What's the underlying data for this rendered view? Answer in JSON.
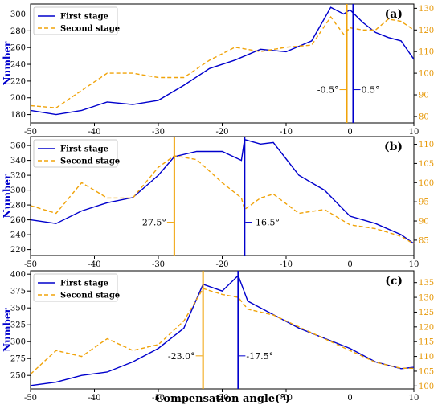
{
  "chart_data": [
    {
      "type": "line",
      "panel_label": "(a)",
      "ylabel": "Number",
      "xlim": [
        -50,
        10
      ],
      "xticks": [
        -50,
        -40,
        -30,
        -20,
        -10,
        0,
        10
      ],
      "ylim": [
        170,
        312
      ],
      "yticks": [
        180,
        200,
        220,
        240,
        260,
        280,
        300
      ],
      "y2lim": [
        77,
        132
      ],
      "y2ticks": [
        80,
        90,
        100,
        110,
        120,
        130
      ],
      "legend": "top-left",
      "series": [
        {
          "name": "First stage",
          "axis": "left",
          "color": "#0000cc",
          "style": "solid",
          "x": [
            -50,
            -46,
            -42,
            -38,
            -34,
            -30,
            -26,
            -22,
            -18,
            -14,
            -10,
            -6,
            -3,
            -1,
            0,
            2,
            4,
            6,
            8,
            10
          ],
          "values": [
            185,
            180,
            185,
            195,
            192,
            197,
            215,
            235,
            245,
            258,
            255,
            268,
            308,
            300,
            305,
            290,
            278,
            272,
            268,
            246
          ]
        },
        {
          "name": "Second stage",
          "axis": "right",
          "color": "#f0a30a",
          "style": "dashed",
          "x": [
            -50,
            -46,
            -42,
            -38,
            -34,
            -30,
            -26,
            -22,
            -18,
            -14,
            -10,
            -6,
            -3,
            -1,
            0,
            2,
            4,
            6,
            8,
            10
          ],
          "values": [
            85,
            84,
            92,
            100,
            100,
            98,
            98,
            106,
            112,
            110,
            112,
            113,
            126,
            118,
            121,
            120,
            120,
            125,
            124,
            120
          ]
        }
      ],
      "markers": [
        {
          "x": -0.5,
          "label": "-0.5°",
          "color": "#f0a30a"
        },
        {
          "x": 0.5,
          "label": "0.5°",
          "color": "#0000cc"
        }
      ]
    },
    {
      "type": "line",
      "panel_label": "(b)",
      "ylabel": "Number",
      "xlim": [
        -50,
        10
      ],
      "xticks": [
        -50,
        -40,
        -30,
        -20,
        -10,
        0,
        10
      ],
      "ylim": [
        212,
        372
      ],
      "yticks": [
        220,
        240,
        260,
        280,
        300,
        320,
        340,
        360
      ],
      "y2lim": [
        81,
        112
      ],
      "y2ticks": [
        85,
        90,
        95,
        100,
        105,
        110
      ],
      "legend": "top-left",
      "series": [
        {
          "name": "First stage",
          "axis": "left",
          "color": "#0000cc",
          "style": "solid",
          "x": [
            -50,
            -46,
            -42,
            -38,
            -34,
            -30,
            -27.5,
            -24,
            -20,
            -17,
            -16.5,
            -14,
            -12,
            -8,
            -4,
            0,
            4,
            8,
            10
          ],
          "values": [
            260,
            255,
            272,
            283,
            290,
            320,
            345,
            352,
            352,
            340,
            368,
            362,
            364,
            320,
            300,
            265,
            255,
            240,
            228
          ]
        },
        {
          "name": "Second stage",
          "axis": "right",
          "color": "#f0a30a",
          "style": "dashed",
          "x": [
            -50,
            -46,
            -42,
            -38,
            -34,
            -30,
            -27.5,
            -24,
            -20,
            -17,
            -16.5,
            -14,
            -12,
            -8,
            -4,
            0,
            4,
            8,
            10
          ],
          "values": [
            94,
            92,
            100,
            96,
            96,
            104,
            107,
            106,
            100,
            96,
            93,
            96,
            97,
            92,
            93,
            89,
            88,
            86,
            84
          ]
        }
      ],
      "markers": [
        {
          "x": -27.5,
          "label": "-27.5°",
          "color": "#f0a30a"
        },
        {
          "x": -16.5,
          "label": "-16.5°",
          "color": "#0000cc"
        }
      ]
    },
    {
      "type": "line",
      "panel_label": "(c)",
      "ylabel": "Number",
      "xlim": [
        -50,
        10
      ],
      "xticks": [
        -50,
        -40,
        -30,
        -20,
        -10,
        0,
        10
      ],
      "ylim": [
        230,
        405
      ],
      "yticks": [
        250,
        275,
        300,
        325,
        350,
        375,
        400
      ],
      "y2lim": [
        99,
        139
      ],
      "y2ticks": [
        100,
        105,
        110,
        115,
        120,
        125,
        130,
        135
      ],
      "legend": "top-left",
      "series": [
        {
          "name": "First stage",
          "axis": "left",
          "color": "#0000cc",
          "style": "solid",
          "x": [
            -50,
            -46,
            -42,
            -38,
            -34,
            -30,
            -26,
            -23,
            -20,
            -17.5,
            -16,
            -12,
            -8,
            -4,
            0,
            4,
            8,
            10
          ],
          "values": [
            235,
            240,
            250,
            255,
            270,
            290,
            320,
            385,
            375,
            398,
            360,
            340,
            320,
            305,
            290,
            270,
            260,
            262
          ]
        },
        {
          "name": "Second stage",
          "axis": "right",
          "color": "#f0a30a",
          "style": "dashed",
          "x": [
            -50,
            -46,
            -42,
            -38,
            -34,
            -30,
            -26,
            -23,
            -20,
            -17.5,
            -16,
            -12,
            -8,
            -4,
            0,
            4,
            8,
            10
          ],
          "values": [
            104,
            112,
            110,
            116,
            112,
            114,
            122,
            133,
            131,
            130,
            126,
            124,
            120,
            116,
            112,
            108,
            106,
            106
          ]
        }
      ],
      "markers": [
        {
          "x": -23.0,
          "label": "-23.0°",
          "color": "#f0a30a"
        },
        {
          "x": -17.5,
          "label": "-17.5°",
          "color": "#0000cc"
        }
      ]
    }
  ],
  "xlabel": "Compensation angle(°)"
}
